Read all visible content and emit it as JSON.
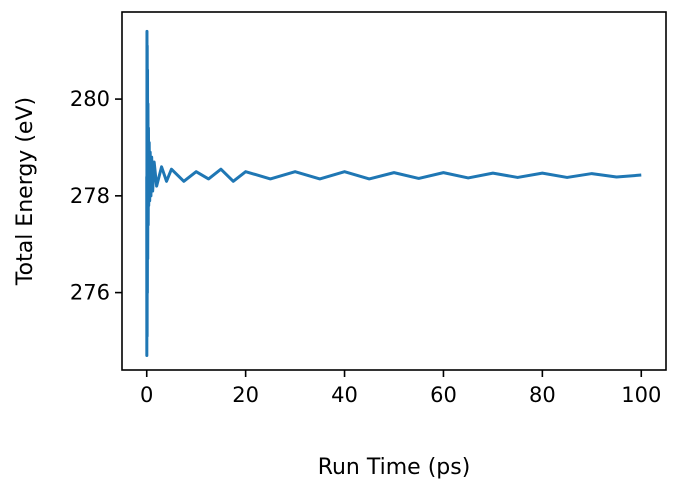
{
  "chart_data": {
    "type": "line",
    "title": "",
    "xlabel": "Run Time (ps)",
    "ylabel": "Total Energy (eV)",
    "xlim": [
      -5,
      105
    ],
    "ylim": [
      274.4,
      281.8
    ],
    "xticks": [
      0,
      20,
      40,
      60,
      80,
      100
    ],
    "yticks": [
      276,
      278,
      280
    ],
    "grid": false,
    "legend": "none",
    "series": [
      {
        "color": "#1f77b4",
        "x": [
          0,
          0.02,
          0.05,
          0.08,
          0.1,
          0.13,
          0.16,
          0.2,
          0.25,
          0.3,
          0.35,
          0.4,
          0.5,
          0.6,
          0.7,
          0.85,
          1.0,
          1.2,
          1.5,
          2,
          3,
          4,
          5,
          7.5,
          10,
          12.5,
          15,
          17.5,
          20,
          25,
          30,
          35,
          40,
          45,
          50,
          55,
          60,
          65,
          70,
          75,
          80,
          85,
          90,
          95,
          100
        ],
        "y": [
          278.4,
          274.7,
          281.4,
          275.1,
          281.1,
          276.0,
          280.6,
          276.7,
          279.9,
          277.4,
          279.4,
          277.8,
          279.1,
          277.9,
          278.9,
          278.0,
          278.8,
          278.1,
          278.7,
          278.2,
          278.6,
          278.3,
          278.55,
          278.3,
          278.5,
          278.35,
          278.55,
          278.3,
          278.5,
          278.35,
          278.5,
          278.35,
          278.5,
          278.35,
          278.48,
          278.36,
          278.48,
          278.37,
          278.47,
          278.38,
          278.47,
          278.38,
          278.46,
          278.39,
          278.43
        ]
      }
    ]
  }
}
